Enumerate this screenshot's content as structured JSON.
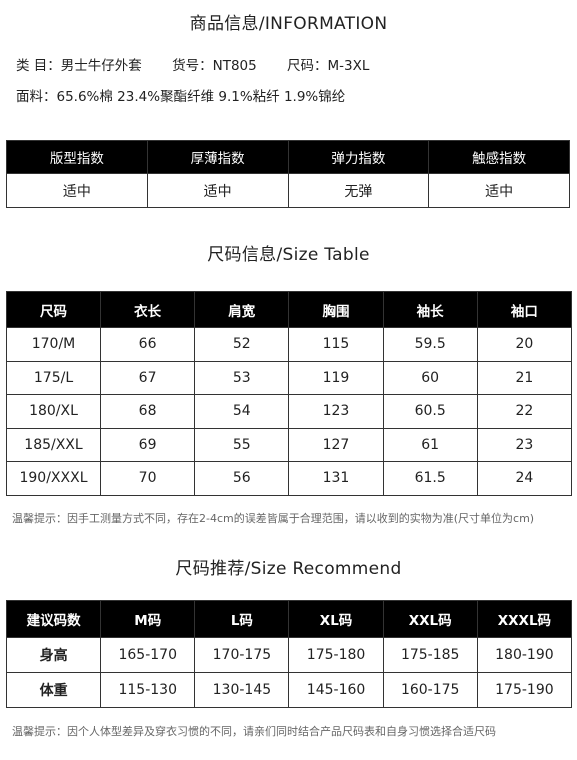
{
  "header": {
    "title": "商品信息/INFORMATION"
  },
  "info": {
    "category": "类 目：男士牛仔外套",
    "item_no": "货号：NT805",
    "size": "尺码：M-3XL",
    "material": "面料：65.6%棉  23.4%聚酯纤维  9.1%粘纤  1.9%锦纶"
  },
  "index_table": {
    "headers": [
      "版型指数",
      "厚薄指数",
      "弹力指数",
      "触感指数"
    ],
    "values": [
      "适中",
      "适中",
      "无弹",
      "适中"
    ]
  },
  "size_table": {
    "title": "尺码信息/Size Table",
    "headers": [
      "尺码",
      "衣长",
      "肩宽",
      "胸围",
      "袖长",
      "袖口"
    ],
    "rows": [
      [
        "170/M",
        "66",
        "52",
        "115",
        "59.5",
        "20"
      ],
      [
        "175/L",
        "67",
        "53",
        "119",
        "60",
        "21"
      ],
      [
        "180/XL",
        "68",
        "54",
        "123",
        "60.5",
        "22"
      ],
      [
        "185/XXL",
        "69",
        "55",
        "127",
        "61",
        "23"
      ],
      [
        "190/XXXL",
        "70",
        "56",
        "131",
        "61.5",
        "24"
      ]
    ],
    "note": "温馨提示：因手工测量方式不同，存在2-4cm的误差皆属于合理范围，请以收到的实物为准(尺寸单位为cm)"
  },
  "recommend_table": {
    "title": "尺码推荐/Size Recommend",
    "headers": [
      "建议码数",
      "M码",
      "L码",
      "XL码",
      "XXL码",
      "XXXL码"
    ],
    "rows": [
      [
        "身高",
        "165-170",
        "170-175",
        "175-180",
        "175-185",
        "180-190"
      ],
      [
        "体重",
        "115-130",
        "130-145",
        "145-160",
        "160-175",
        "175-190"
      ]
    ],
    "note": "温馨提示：因个人体型差异及穿衣习惯的不同，请亲们同时结合产品尺码表和自身习惯选择合适尺码"
  }
}
